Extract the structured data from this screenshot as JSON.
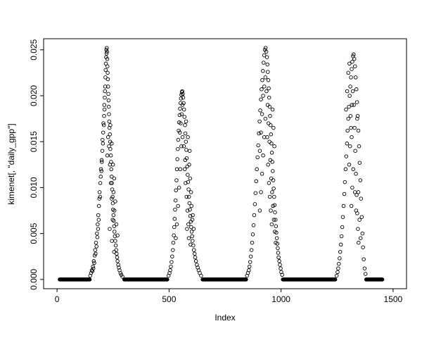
{
  "chart_data": {
    "type": "scatter",
    "title": "",
    "xlabel": "Index",
    "ylabel": "kimenet[, \"daily_gpp\"]",
    "xlim": [
      0,
      1500
    ],
    "ylim": [
      0,
      0.0252
    ],
    "x_ticks": [
      0,
      500,
      1000,
      1500
    ],
    "x_tick_labels": [
      "0",
      "500",
      "1000",
      "1500"
    ],
    "y_ticks": [
      0,
      0.005,
      0.01,
      0.015,
      0.02,
      0.025
    ],
    "y_tick_labels": [
      "0.000",
      "0.005",
      "0.010",
      "0.015",
      "0.020",
      "0.025"
    ],
    "marker": "open-circle",
    "point_color": "#000000",
    "background_color": "#ffffff",
    "grid": false,
    "legend": false,
    "baseline_runs": [
      [
        12,
        146,
        2
      ],
      [
        300,
        492,
        2
      ],
      [
        650,
        844,
        2
      ],
      [
        1008,
        1242,
        2
      ],
      [
        1380,
        1452,
        2
      ]
    ],
    "points": [
      [
        148,
        0.0004
      ],
      [
        152,
        0.0007
      ],
      [
        155,
        0.001
      ],
      [
        158,
        0.0009
      ],
      [
        160,
        0.0014
      ],
      [
        162,
        0.0012
      ],
      [
        164,
        0.002
      ],
      [
        166,
        0.0018
      ],
      [
        168,
        0.0026
      ],
      [
        170,
        0.0032
      ],
      [
        172,
        0.0028
      ],
      [
        174,
        0.004
      ],
      [
        176,
        0.0036
      ],
      [
        178,
        0.005
      ],
      [
        180,
        0.0046
      ],
      [
        181,
        0.006
      ],
      [
        183,
        0.0055
      ],
      [
        184,
        0.007
      ],
      [
        186,
        0.0065
      ],
      [
        187,
        0.008
      ],
      [
        189,
        0.0088
      ],
      [
        190,
        0.0095
      ],
      [
        192,
        0.009
      ],
      [
        193,
        0.0105
      ],
      [
        195,
        0.0112
      ],
      [
        196,
        0.012
      ],
      [
        198,
        0.0118
      ],
      [
        199,
        0.013
      ],
      [
        200,
        0.0128
      ],
      [
        202,
        0.014
      ],
      [
        203,
        0.0152
      ],
      [
        205,
        0.0148
      ],
      [
        206,
        0.016
      ],
      [
        207,
        0.017
      ],
      [
        209,
        0.0168
      ],
      [
        210,
        0.0178
      ],
      [
        211,
        0.019
      ],
      [
        212,
        0.0185
      ],
      [
        213,
        0.0198
      ],
      [
        214,
        0.0205
      ],
      [
        215,
        0.021
      ],
      [
        216,
        0.022
      ],
      [
        217,
        0.0228
      ],
      [
        218,
        0.0235
      ],
      [
        219,
        0.0242
      ],
      [
        220,
        0.025
      ],
      [
        221,
        0.0246
      ],
      [
        222,
        0.0252
      ],
      [
        223,
        0.0248
      ],
      [
        224,
        0.024
      ],
      [
        225,
        0.0232
      ],
      [
        226,
        0.0225
      ],
      [
        227,
        0.0218
      ],
      [
        228,
        0.021
      ],
      [
        229,
        0.0202
      ],
      [
        230,
        0.0195
      ],
      [
        231,
        0.0188
      ],
      [
        232,
        0.018
      ],
      [
        233,
        0.0172
      ],
      [
        234,
        0.0165
      ],
      [
        236,
        0.0158
      ],
      [
        237,
        0.015
      ],
      [
        238,
        0.0142
      ],
      [
        240,
        0.0135
      ],
      [
        241,
        0.0128
      ],
      [
        242,
        0.012
      ],
      [
        244,
        0.0112
      ],
      [
        245,
        0.0105
      ],
      [
        246,
        0.0098
      ],
      [
        248,
        0.009
      ],
      [
        249,
        0.0083
      ],
      [
        250,
        0.0076
      ],
      [
        252,
        0.007
      ],
      [
        253,
        0.0064
      ],
      [
        255,
        0.0058
      ],
      [
        256,
        0.0052
      ],
      [
        258,
        0.0047
      ],
      [
        260,
        0.0042
      ],
      [
        262,
        0.0037
      ],
      [
        264,
        0.0032
      ],
      [
        266,
        0.0028
      ],
      [
        268,
        0.0024
      ],
      [
        270,
        0.002
      ],
      [
        273,
        0.0016
      ],
      [
        276,
        0.0013
      ],
      [
        279,
        0.001
      ],
      [
        283,
        0.0007
      ],
      [
        287,
        0.0005
      ],
      [
        292,
        0.0003
      ],
      [
        232,
        0.0145
      ],
      [
        236,
        0.0125
      ],
      [
        240,
        0.0105
      ],
      [
        244,
        0.0088
      ],
      [
        248,
        0.0065
      ],
      [
        252,
        0.0095
      ],
      [
        256,
        0.0075
      ],
      [
        244,
        0.0148
      ],
      [
        238,
        0.0168
      ],
      [
        228,
        0.0155
      ],
      [
        224,
        0.0135
      ],
      [
        250,
        0.0125
      ],
      [
        255,
        0.011
      ],
      [
        260,
        0.0085
      ],
      [
        235,
        0.0055
      ],
      [
        245,
        0.0042
      ],
      [
        255,
        0.003
      ],
      [
        265,
        0.006
      ],
      [
        270,
        0.0048
      ],
      [
        498,
        0.0004
      ],
      [
        502,
        0.0007
      ],
      [
        505,
        0.001
      ],
      [
        508,
        0.0014
      ],
      [
        511,
        0.0019
      ],
      [
        514,
        0.0025
      ],
      [
        517,
        0.0032
      ],
      [
        519,
        0.004
      ],
      [
        521,
        0.0048
      ],
      [
        523,
        0.0057
      ],
      [
        525,
        0.0066
      ],
      [
        527,
        0.0076
      ],
      [
        529,
        0.0086
      ],
      [
        531,
        0.0097
      ],
      [
        533,
        0.0108
      ],
      [
        535,
        0.012
      ],
      [
        537,
        0.0131
      ],
      [
        539,
        0.0142
      ],
      [
        541,
        0.0152
      ],
      [
        543,
        0.0162
      ],
      [
        545,
        0.0171
      ],
      [
        547,
        0.0179
      ],
      [
        549,
        0.0186
      ],
      [
        551,
        0.0192
      ],
      [
        553,
        0.0197
      ],
      [
        555,
        0.0201
      ],
      [
        557,
        0.0204
      ],
      [
        559,
        0.0205
      ],
      [
        561,
        0.0202
      ],
      [
        563,
        0.0198
      ],
      [
        548,
        0.016
      ],
      [
        552,
        0.017
      ],
      [
        556,
        0.018
      ],
      [
        560,
        0.019
      ],
      [
        565,
        0.0192
      ],
      [
        567,
        0.0185
      ],
      [
        569,
        0.0177
      ],
      [
        571,
        0.0168
      ],
      [
        573,
        0.0159
      ],
      [
        575,
        0.015
      ],
      [
        577,
        0.0141
      ],
      [
        579,
        0.0132
      ],
      [
        581,
        0.0123
      ],
      [
        583,
        0.0114
      ],
      [
        585,
        0.0106
      ],
      [
        587,
        0.0098
      ],
      [
        589,
        0.009
      ],
      [
        591,
        0.0083
      ],
      [
        593,
        0.0076
      ],
      [
        595,
        0.0069
      ],
      [
        597,
        0.0063
      ],
      [
        599,
        0.0057
      ],
      [
        601,
        0.0052
      ],
      [
        603,
        0.0047
      ],
      [
        605,
        0.0042
      ],
      [
        608,
        0.0037
      ],
      [
        611,
        0.0032
      ],
      [
        614,
        0.0028
      ],
      [
        617,
        0.0024
      ],
      [
        620,
        0.002
      ],
      [
        624,
        0.0016
      ],
      [
        628,
        0.0013
      ],
      [
        632,
        0.001
      ],
      [
        637,
        0.0007
      ],
      [
        643,
        0.0004
      ],
      [
        570,
        0.012
      ],
      [
        574,
        0.0105
      ],
      [
        578,
        0.009
      ],
      [
        582,
        0.0075
      ],
      [
        586,
        0.006
      ],
      [
        590,
        0.0125
      ],
      [
        594,
        0.011
      ],
      [
        598,
        0.0095
      ],
      [
        566,
        0.0145
      ],
      [
        572,
        0.013
      ],
      [
        580,
        0.0055
      ],
      [
        588,
        0.0045
      ],
      [
        596,
        0.0038
      ],
      [
        604,
        0.0065
      ],
      [
        610,
        0.0055
      ],
      [
        576,
        0.0172
      ],
      [
        584,
        0.0155
      ],
      [
        592,
        0.014
      ],
      [
        600,
        0.008
      ],
      [
        606,
        0.007
      ],
      [
        560,
        0.0155
      ],
      [
        555,
        0.0145
      ],
      [
        550,
        0.012
      ],
      [
        545,
        0.01
      ],
      [
        540,
        0.008
      ],
      [
        535,
        0.006
      ],
      [
        530,
        0.0045
      ],
      [
        848,
        0.0004
      ],
      [
        852,
        0.0007
      ],
      [
        856,
        0.001
      ],
      [
        859,
        0.0014
      ],
      [
        862,
        0.0019
      ],
      [
        865,
        0.0025
      ],
      [
        868,
        0.0032
      ],
      [
        871,
        0.004
      ],
      [
        874,
        0.0049
      ],
      [
        877,
        0.0059
      ],
      [
        880,
        0.007
      ],
      [
        883,
        0.0082
      ],
      [
        886,
        0.0094
      ],
      [
        889,
        0.0107
      ],
      [
        892,
        0.012
      ],
      [
        895,
        0.0133
      ],
      [
        898,
        0.0146
      ],
      [
        901,
        0.0159
      ],
      [
        904,
        0.0172
      ],
      [
        907,
        0.0184
      ],
      [
        910,
        0.0196
      ],
      [
        913,
        0.0207
      ],
      [
        916,
        0.0217
      ],
      [
        919,
        0.0227
      ],
      [
        922,
        0.0236
      ],
      [
        925,
        0.0244
      ],
      [
        928,
        0.025
      ],
      [
        931,
        0.0252
      ],
      [
        934,
        0.0248
      ],
      [
        905,
        0.014
      ],
      [
        910,
        0.016
      ],
      [
        915,
        0.018
      ],
      [
        920,
        0.02
      ],
      [
        925,
        0.021
      ],
      [
        930,
        0.022
      ],
      [
        937,
        0.0242
      ],
      [
        939,
        0.0234
      ],
      [
        941,
        0.0226
      ],
      [
        943,
        0.0217
      ],
      [
        945,
        0.0208
      ],
      [
        947,
        0.0198
      ],
      [
        949,
        0.0188
      ],
      [
        951,
        0.0178
      ],
      [
        953,
        0.0168
      ],
      [
        955,
        0.0158
      ],
      [
        957,
        0.0148
      ],
      [
        959,
        0.0138
      ],
      [
        961,
        0.0128
      ],
      [
        963,
        0.0118
      ],
      [
        965,
        0.0108
      ],
      [
        967,
        0.0099
      ],
      [
        969,
        0.009
      ],
      [
        971,
        0.0081
      ],
      [
        973,
        0.0073
      ],
      [
        975,
        0.0065
      ],
      [
        977,
        0.0058
      ],
      [
        979,
        0.0051
      ],
      [
        981,
        0.0045
      ],
      [
        983,
        0.0039
      ],
      [
        985,
        0.0034
      ],
      [
        987,
        0.0029
      ],
      [
        989,
        0.0024
      ],
      [
        992,
        0.002
      ],
      [
        995,
        0.0016
      ],
      [
        998,
        0.0012
      ],
      [
        1001,
        0.0008
      ],
      [
        1005,
        0.0005
      ],
      [
        940,
        0.019
      ],
      [
        944,
        0.017
      ],
      [
        948,
        0.015
      ],
      [
        952,
        0.013
      ],
      [
        956,
        0.011
      ],
      [
        960,
        0.0095
      ],
      [
        964,
        0.008
      ],
      [
        968,
        0.0065
      ],
      [
        972,
        0.0052
      ],
      [
        976,
        0.004
      ],
      [
        942,
        0.0125
      ],
      [
        946,
        0.0105
      ],
      [
        950,
        0.009
      ],
      [
        954,
        0.0075
      ],
      [
        958,
        0.006
      ],
      [
        935,
        0.0205
      ],
      [
        938,
        0.0155
      ],
      [
        930,
        0.0175
      ],
      [
        925,
        0.0155
      ],
      [
        920,
        0.0135
      ],
      [
        915,
        0.0115
      ],
      [
        910,
        0.0095
      ],
      [
        905,
        0.0075
      ],
      [
        962,
        0.0185
      ],
      [
        966,
        0.0165
      ],
      [
        970,
        0.0145
      ],
      [
        1248,
        0.0004
      ],
      [
        1252,
        0.0008
      ],
      [
        1255,
        0.0012
      ],
      [
        1258,
        0.0017
      ],
      [
        1261,
        0.0023
      ],
      [
        1264,
        0.003
      ],
      [
        1267,
        0.0038
      ],
      [
        1270,
        0.0047
      ],
      [
        1273,
        0.0057
      ],
      [
        1276,
        0.0068
      ],
      [
        1279,
        0.008
      ],
      [
        1282,
        0.0093
      ],
      [
        1285,
        0.0106
      ],
      [
        1288,
        0.012
      ],
      [
        1291,
        0.0134
      ],
      [
        1294,
        0.0148
      ],
      [
        1297,
        0.0162
      ],
      [
        1300,
        0.0175
      ],
      [
        1303,
        0.0188
      ],
      [
        1306,
        0.02
      ],
      [
        1309,
        0.021
      ],
      [
        1312,
        0.022
      ],
      [
        1315,
        0.0229
      ],
      [
        1318,
        0.0237
      ],
      [
        1321,
        0.0243
      ],
      [
        1324,
        0.0245
      ],
      [
        1327,
        0.024
      ],
      [
        1290,
        0.0185
      ],
      [
        1295,
        0.0205
      ],
      [
        1300,
        0.0225
      ],
      [
        1305,
        0.0235
      ],
      [
        1310,
        0.0178
      ],
      [
        1315,
        0.0155
      ],
      [
        1330,
        0.0232
      ],
      [
        1333,
        0.022
      ],
      [
        1336,
        0.0207
      ],
      [
        1339,
        0.0193
      ],
      [
        1342,
        0.0178
      ],
      [
        1345,
        0.0162
      ],
      [
        1348,
        0.0145
      ],
      [
        1351,
        0.0127
      ],
      [
        1354,
        0.0108
      ],
      [
        1357,
        0.0088
      ],
      [
        1360,
        0.0068
      ],
      [
        1363,
        0.005
      ],
      [
        1366,
        0.0035
      ],
      [
        1369,
        0.0022
      ],
      [
        1373,
        0.0012
      ],
      [
        1377,
        0.0006
      ],
      [
        1325,
        0.019
      ],
      [
        1328,
        0.0165
      ],
      [
        1331,
        0.014
      ],
      [
        1334,
        0.0115
      ],
      [
        1337,
        0.0092
      ],
      [
        1340,
        0.0072
      ],
      [
        1343,
        0.0055
      ],
      [
        1346,
        0.004
      ],
      [
        1320,
        0.0205
      ],
      [
        1316,
        0.019
      ],
      [
        1312,
        0.0165
      ],
      [
        1308,
        0.0145
      ],
      [
        1304,
        0.0125
      ],
      [
        1330,
        0.0095
      ],
      [
        1335,
        0.0075
      ],
      [
        1340,
        0.0175
      ],
      [
        1345,
        0.0095
      ],
      [
        1350,
        0.0065
      ],
      [
        1355,
        0.0045
      ],
      [
        1322,
        0.012
      ],
      [
        1318,
        0.01
      ],
      [
        1314,
        0.008
      ]
    ]
  }
}
